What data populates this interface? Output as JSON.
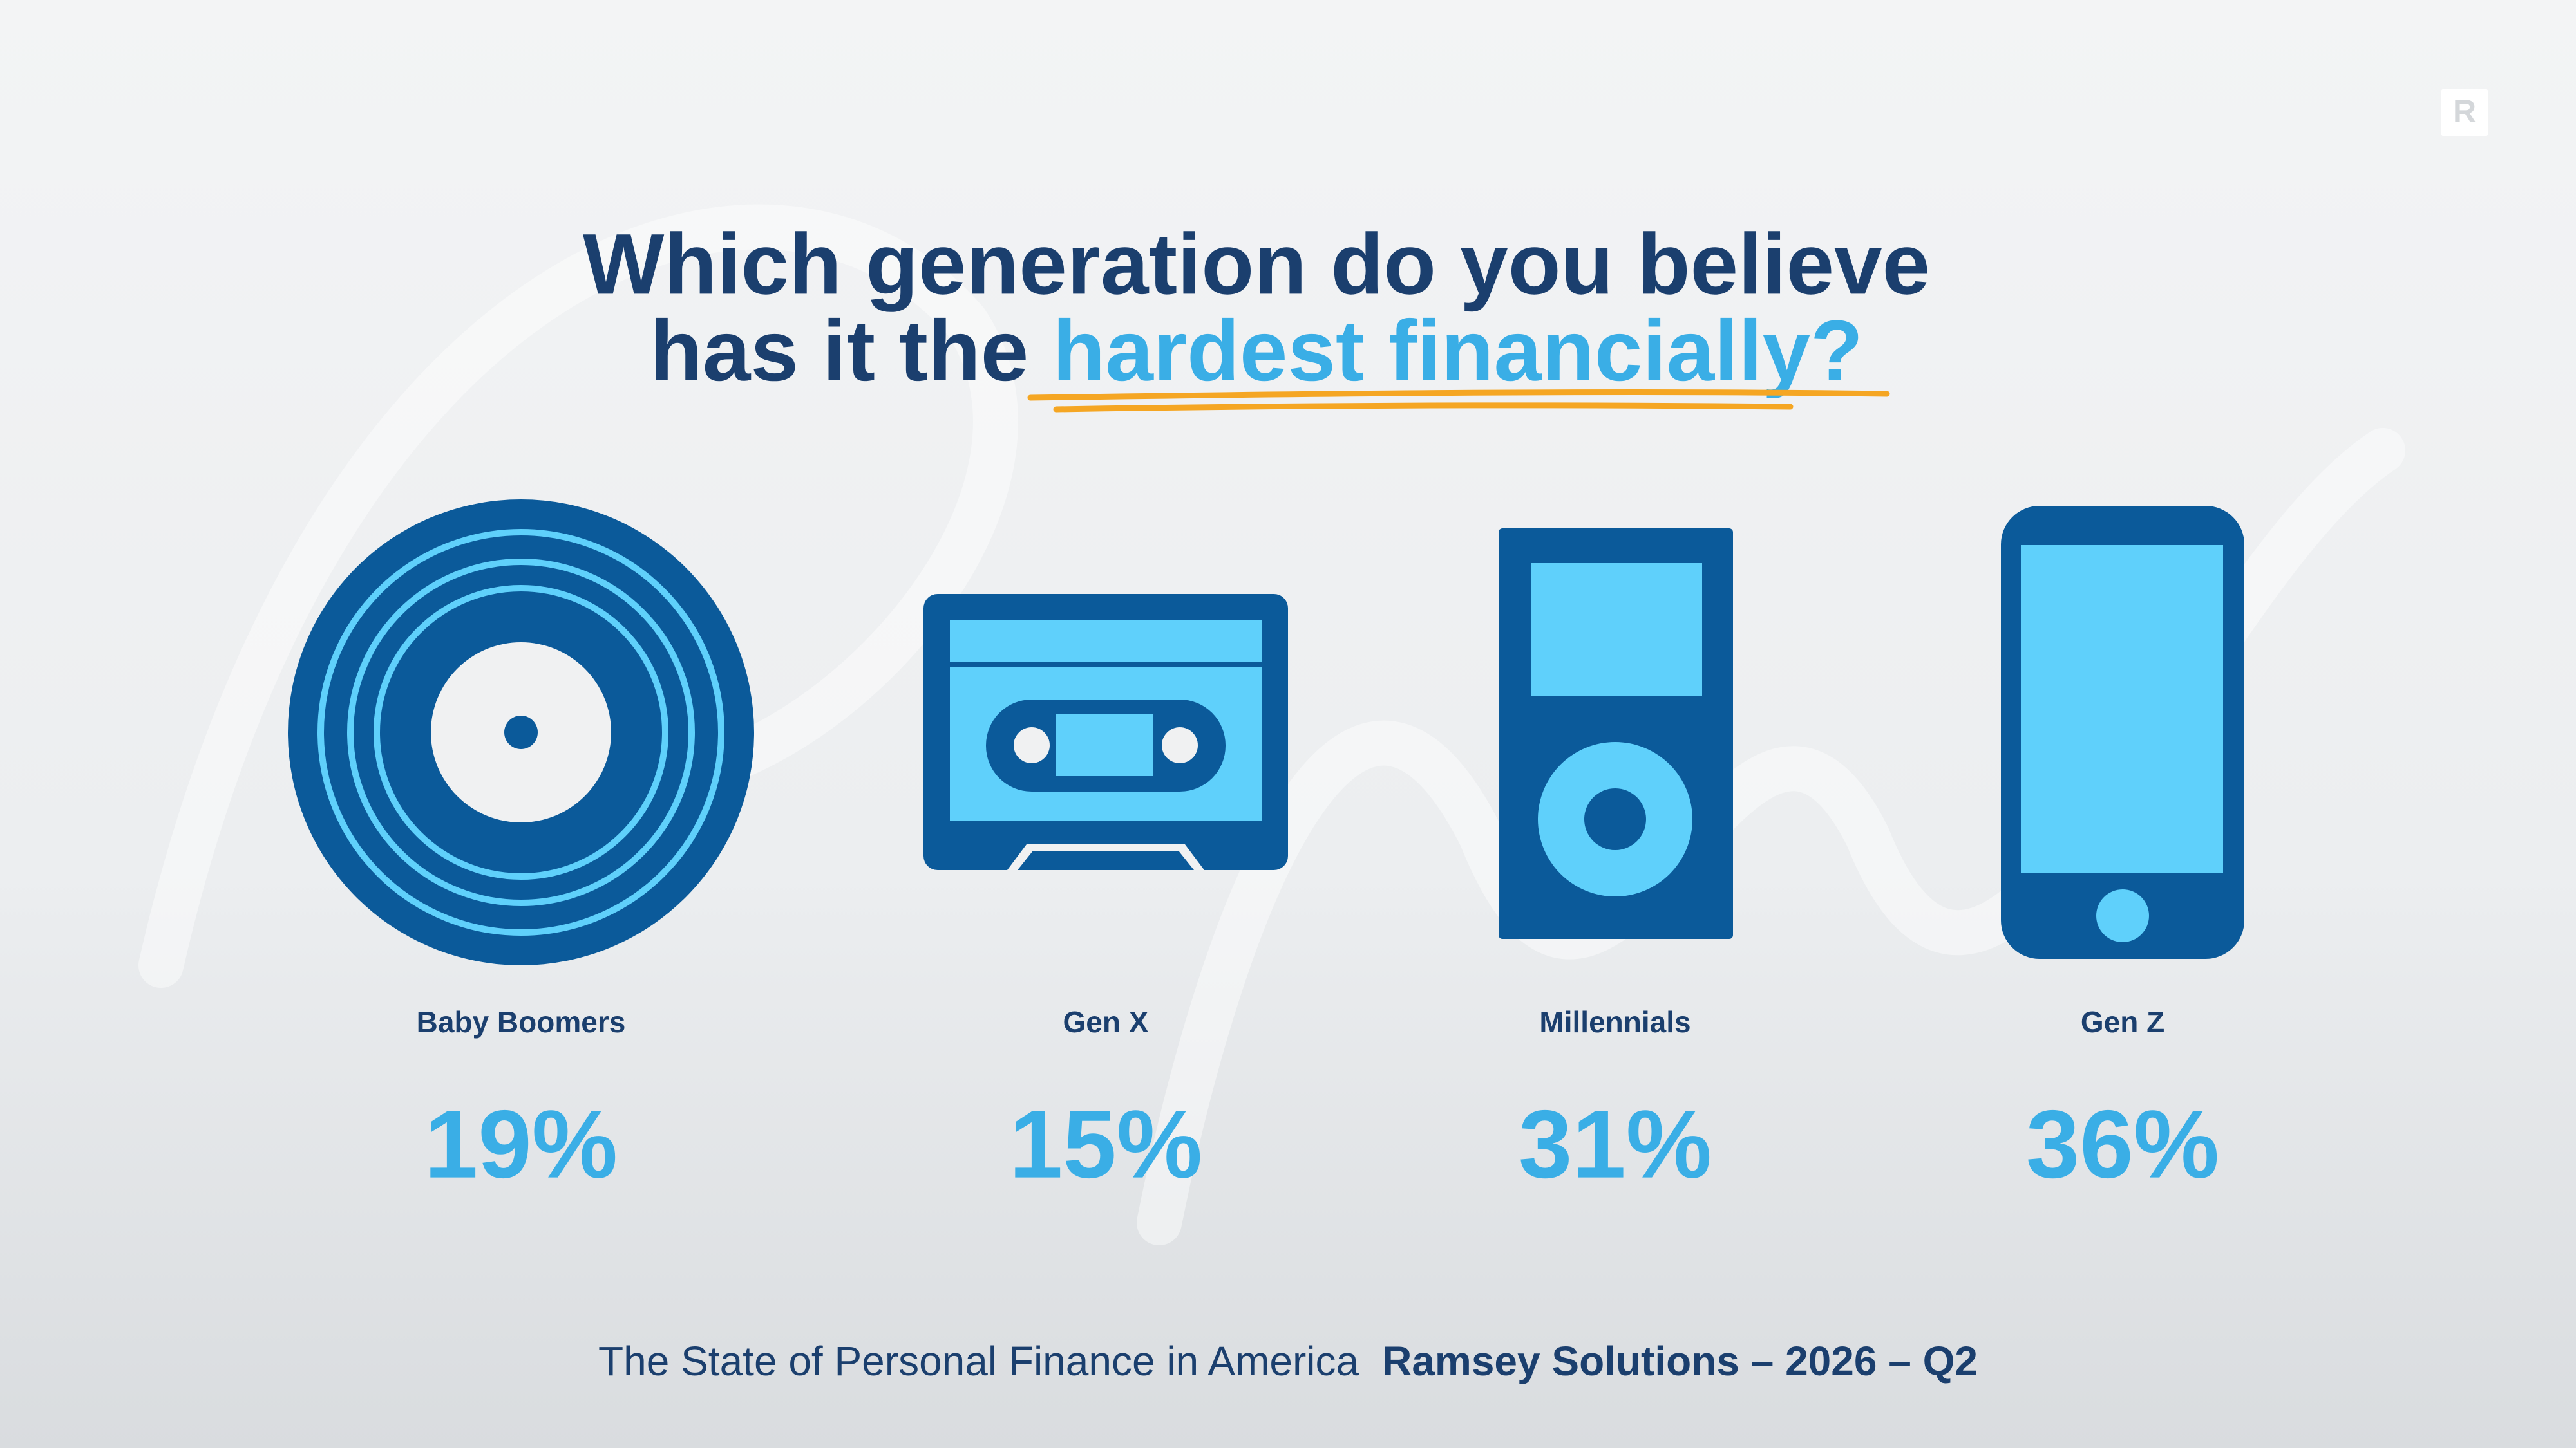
{
  "logo": "R",
  "title": {
    "line1": "Which generation do you believe",
    "line2_start": "has it the ",
    "line2_highlight": "hardest financially?"
  },
  "items": [
    {
      "label": "Baby Boomers",
      "value": "19%"
    },
    {
      "label": "Gen X",
      "value": "15%"
    },
    {
      "label": "Millennials",
      "value": "31%"
    },
    {
      "label": "Gen Z",
      "value": "36%"
    }
  ],
  "footer": {
    "source": "The State of Personal Finance in America",
    "publisher": "Ramsey Solutions – 2026 – Q2"
  }
}
